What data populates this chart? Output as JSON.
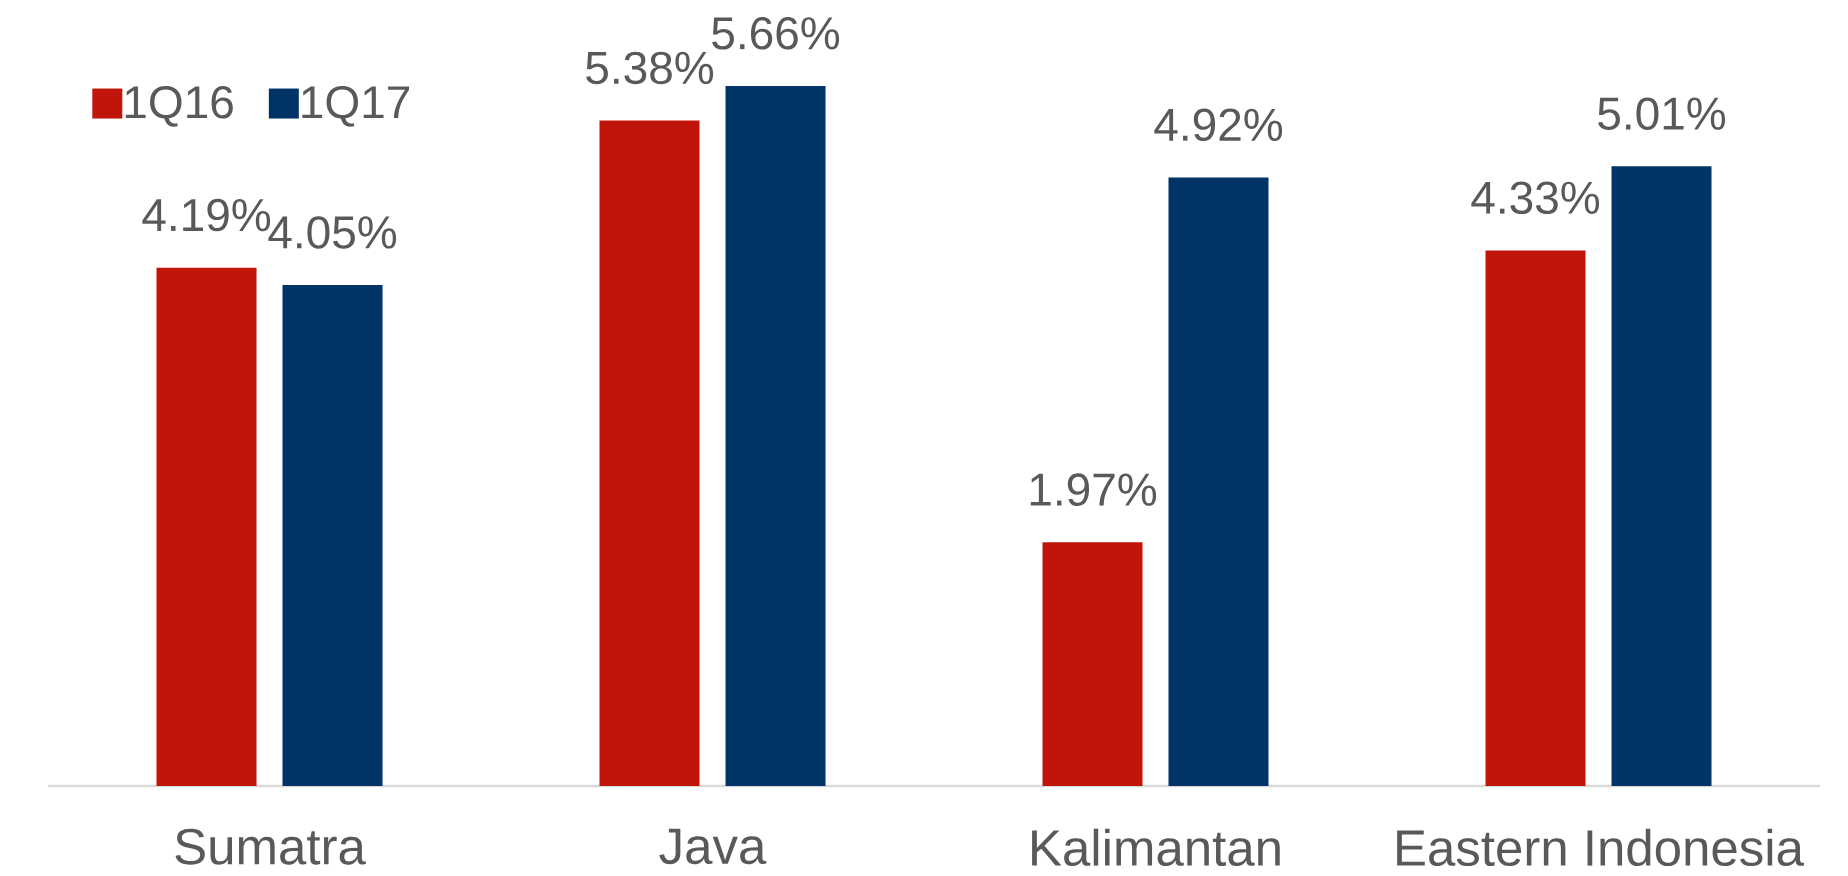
{
  "chart_data": {
    "type": "bar",
    "categories": [
      "Sumatra",
      "Java",
      "Kalimantan",
      "Eastern Indonesia"
    ],
    "series": [
      {
        "name": "1Q16",
        "color": "#c1140a",
        "values": [
          4.19,
          5.38,
          1.97,
          4.33
        ],
        "value_labels": [
          "4.19%",
          "5.38%",
          "1.97%",
          "4.33%"
        ]
      },
      {
        "name": "1Q17",
        "color": "#013466",
        "values": [
          4.05,
          5.66,
          4.92,
          5.01
        ],
        "value_labels": [
          "4.05%",
          "5.66%",
          "4.92%",
          "5.01%"
        ]
      }
    ],
    "tick_labels": "x",
    "legend": "top left"
  }
}
